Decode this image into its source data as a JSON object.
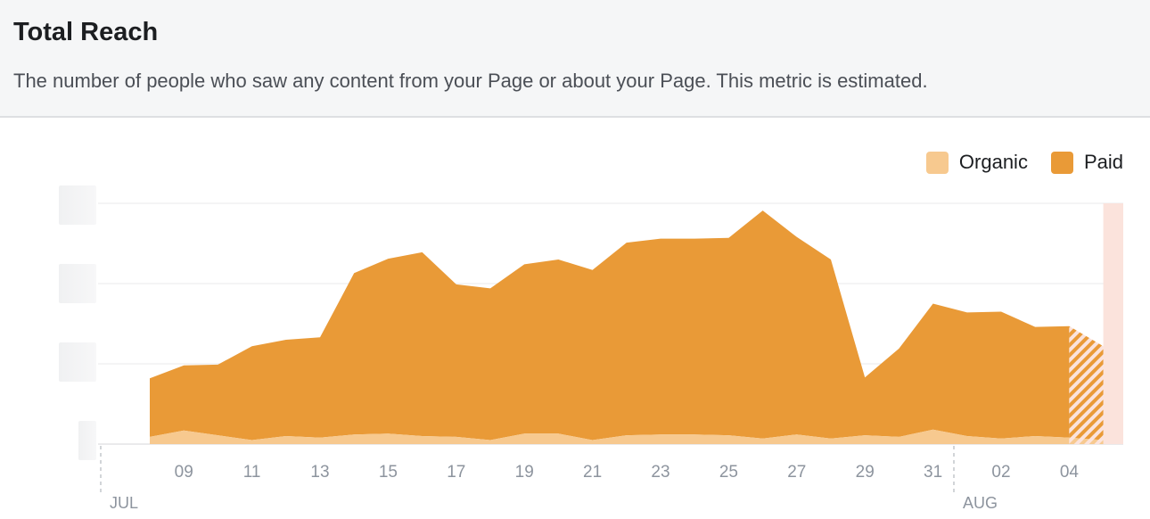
{
  "header": {
    "title": "Total Reach",
    "subtitle": "The number of people who saw any content from your Page or about your Page. This metric is estimated."
  },
  "legend": [
    {
      "label": "Organic",
      "color": "#f7c98f"
    },
    {
      "label": "Paid",
      "color": "#e99a37"
    }
  ],
  "colors": {
    "paid": "#e99a37",
    "organic": "#f7c98f",
    "grid": "#e9eaeb",
    "tick_text": "#8d949e",
    "estimated_band": "#fbe3dc"
  },
  "chart_data": {
    "type": "area",
    "stacked": true,
    "x": [
      "Jul 08",
      "Jul 09",
      "Jul 10",
      "Jul 11",
      "Jul 12",
      "Jul 13",
      "Jul 14",
      "Jul 15",
      "Jul 16",
      "Jul 17",
      "Jul 18",
      "Jul 19",
      "Jul 20",
      "Jul 21",
      "Jul 22",
      "Jul 23",
      "Jul 24",
      "Jul 25",
      "Jul 26",
      "Jul 27",
      "Jul 28",
      "Jul 29",
      "Jul 30",
      "Jul 31",
      "Aug 01",
      "Aug 02",
      "Aug 03",
      "Aug 04",
      "Aug 05"
    ],
    "series": [
      {
        "name": "Organic",
        "values": [
          0.09,
          0.17,
          0.11,
          0.05,
          0.1,
          0.08,
          0.12,
          0.13,
          0.1,
          0.09,
          0.05,
          0.13,
          0.13,
          0.05,
          0.11,
          0.12,
          0.12,
          0.11,
          0.07,
          0.12,
          0.07,
          0.11,
          0.09,
          0.18,
          0.1,
          0.07,
          0.1,
          0.08,
          0.05
        ]
      },
      {
        "name": "Paid",
        "values": [
          0.73,
          0.81,
          0.88,
          1.17,
          1.2,
          1.25,
          2.01,
          2.18,
          2.29,
          1.9,
          1.89,
          2.11,
          2.17,
          2.12,
          2.4,
          2.44,
          2.44,
          2.46,
          2.84,
          2.46,
          2.23,
          0.72,
          1.1,
          1.57,
          1.54,
          1.58,
          1.36,
          1.39,
          1.17
        ]
      }
    ],
    "estimated_from": "Aug 05",
    "x_ticks": [
      "09",
      "11",
      "13",
      "15",
      "17",
      "19",
      "21",
      "23",
      "25",
      "27",
      "29",
      "31",
      "02",
      "04"
    ],
    "month_labels": [
      "JUL",
      "AUG"
    ],
    "ylim": [
      0,
      3
    ],
    "y_tick_labels_hidden": true,
    "grid": true,
    "legend_position": "top-right"
  }
}
